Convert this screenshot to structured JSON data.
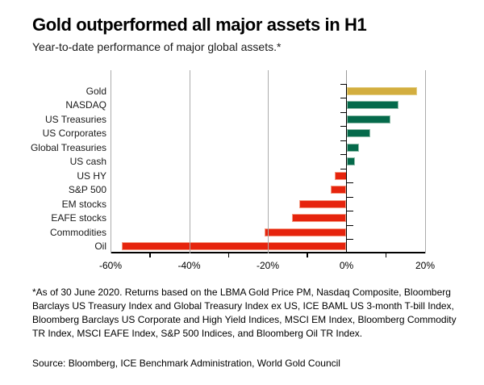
{
  "header": {
    "title": "Gold outperformed all major assets in H1",
    "subtitle": "Year-to-date performance of major global assets.*"
  },
  "chart_data": {
    "type": "bar",
    "orientation": "horizontal",
    "title": "Gold outperformed all major assets in H1",
    "subtitle": "Year-to-date performance of major global assets.*",
    "categories": [
      "Gold",
      "NASDAQ",
      "US Treasuries",
      "US Corporates",
      "Global Treasuries",
      "US cash",
      "US HY",
      "S&P 500",
      "EM stocks",
      "EAFE stocks",
      "Commodities",
      "Oil"
    ],
    "values": [
      18.0,
      13.2,
      11.2,
      6.1,
      3.2,
      2.2,
      -3.0,
      -3.9,
      -11.9,
      -13.8,
      -20.8,
      -57.2
    ],
    "unit": "%",
    "xlim": [
      -60,
      20
    ],
    "x_ticks": [
      {
        "value": -60,
        "label": "-60%"
      },
      {
        "value": -40,
        "label": "-40%"
      },
      {
        "value": -20,
        "label": "-20%"
      },
      {
        "value": 0,
        "label": "0%"
      },
      {
        "value": 20,
        "label": "20%"
      }
    ],
    "minor_ticks": [
      -50,
      -30,
      -10,
      10
    ],
    "gridlines": [
      -60,
      -40,
      -20,
      20
    ],
    "bar_colors": [
      "gold",
      "green",
      "green",
      "green",
      "green",
      "green",
      "red",
      "red",
      "red",
      "red",
      "red",
      "red"
    ],
    "palette": {
      "gold": "#D3AE3F",
      "green": "#056A4B",
      "red": "#E6240D"
    },
    "palette_light": {
      "gold": "#E3CE85",
      "green": "#8FBCA9",
      "red": "#F49A82"
    },
    "gridline_color": "#ABABAB",
    "axis_color": "#000000",
    "grid": true,
    "legend": false
  },
  "footnote": "*As of 30 June 2020. Returns based on the LBMA Gold Price PM, Nasdaq Composite, Bloomberg Barclays US Treasury Index and Global Treasury Index ex US, ICE BAML US 3-month T-bill Index, Bloomberg Barclays US Corporate and High Yield Indices, MSCI EM Index, Bloomberg Commodity TR Index, MSCI EAFE Index, S&P 500 Indices, and Bloomberg Oil TR Index.",
  "source": "Source: Bloomberg, ICE Benchmark Administration, World Gold Council"
}
